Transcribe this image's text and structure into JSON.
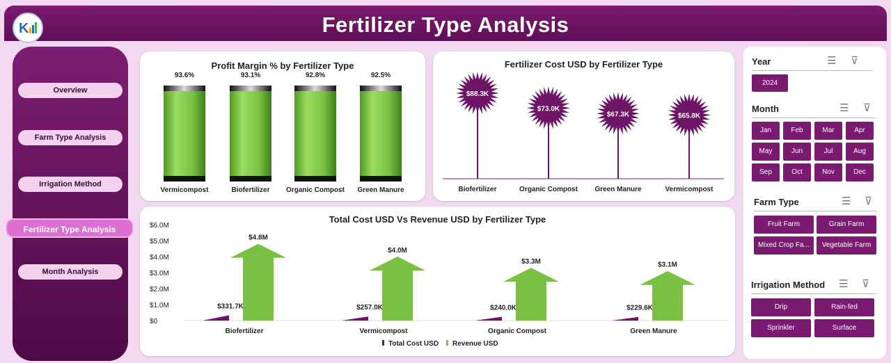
{
  "header": {
    "title": "Fertilizer Type Analysis"
  },
  "nav": [
    "Overview",
    "Farm Type Analysis",
    "Irrigation Method",
    "Fertilizer Type Analysis",
    "Month Analysis"
  ],
  "chart1": {
    "title": "Profit Margin % by Fertilizer Type"
  },
  "chart2": {
    "title": "Fertilizer Cost USD by Fertilizer Type"
  },
  "chart3": {
    "title": "Total Cost USD Vs Revenue USD by Fertilizer Type"
  },
  "slicers": {
    "year": {
      "title": "Year",
      "items": [
        "2024"
      ]
    },
    "month": {
      "title": "Month",
      "items": [
        "Jan",
        "Feb",
        "Mar",
        "Apr",
        "May",
        "Jun",
        "Jul",
        "Aug",
        "Sep",
        "Oct",
        "Nov",
        "Dec"
      ]
    },
    "farm": {
      "title": "Farm Type",
      "items": [
        "Fruit Farm",
        "Grain Farm",
        "Mixed Crop Fa...",
        "Vegetable Farm"
      ]
    },
    "irr": {
      "title": "Irrigation Method",
      "items": [
        "Drip",
        "Rain-fed",
        "Sprinkler",
        "Surface"
      ]
    }
  },
  "colors": {
    "purple": "#6e1466",
    "green": "#7ac143"
  },
  "chart_data": [
    {
      "type": "bar",
      "title": "Profit Margin % by Fertilizer Type",
      "categories": [
        "Vermicompost",
        "Biofertilizer",
        "Organic Compost",
        "Green Manure"
      ],
      "values": [
        93.6,
        93.1,
        92.8,
        92.5
      ],
      "labels": [
        "93.6%",
        "93.1%",
        "92.8%",
        "92.5%"
      ]
    },
    {
      "type": "bar",
      "title": "Fertilizer Cost USD by Fertilizer Type",
      "categories": [
        "Biofertilizer",
        "Organic Compost",
        "Green Manure",
        "Vermicompost"
      ],
      "values": [
        88.3,
        73.0,
        67.3,
        65.8
      ],
      "labels": [
        "$88.3K",
        "$73.0K",
        "$67.3K",
        "$65.8K"
      ]
    },
    {
      "type": "bar",
      "title": "Total Cost USD Vs Revenue USD by Fertilizer Type",
      "categories": [
        "Biofertilizer",
        "Vermicompost",
        "Organic Compost",
        "Green Manure"
      ],
      "yticks": [
        "$6.0M",
        "$5.0M",
        "$4.0M",
        "$3.0M",
        "$2.0M",
        "$1.0M",
        "$0"
      ],
      "ylim": [
        0,
        6
      ],
      "series": [
        {
          "name": "Total Cost USD",
          "values": [
            0.3317,
            0.257,
            0.24,
            0.2296
          ],
          "labels": [
            "$331.7K",
            "$257.0K",
            "$240.0K",
            "$229.6K"
          ]
        },
        {
          "name": "Revenue USD",
          "values": [
            4.8,
            4.0,
            3.3,
            3.1
          ],
          "labels": [
            "$4.8M",
            "$4.0M",
            "$3.3M",
            "$3.1M"
          ]
        }
      ]
    }
  ]
}
